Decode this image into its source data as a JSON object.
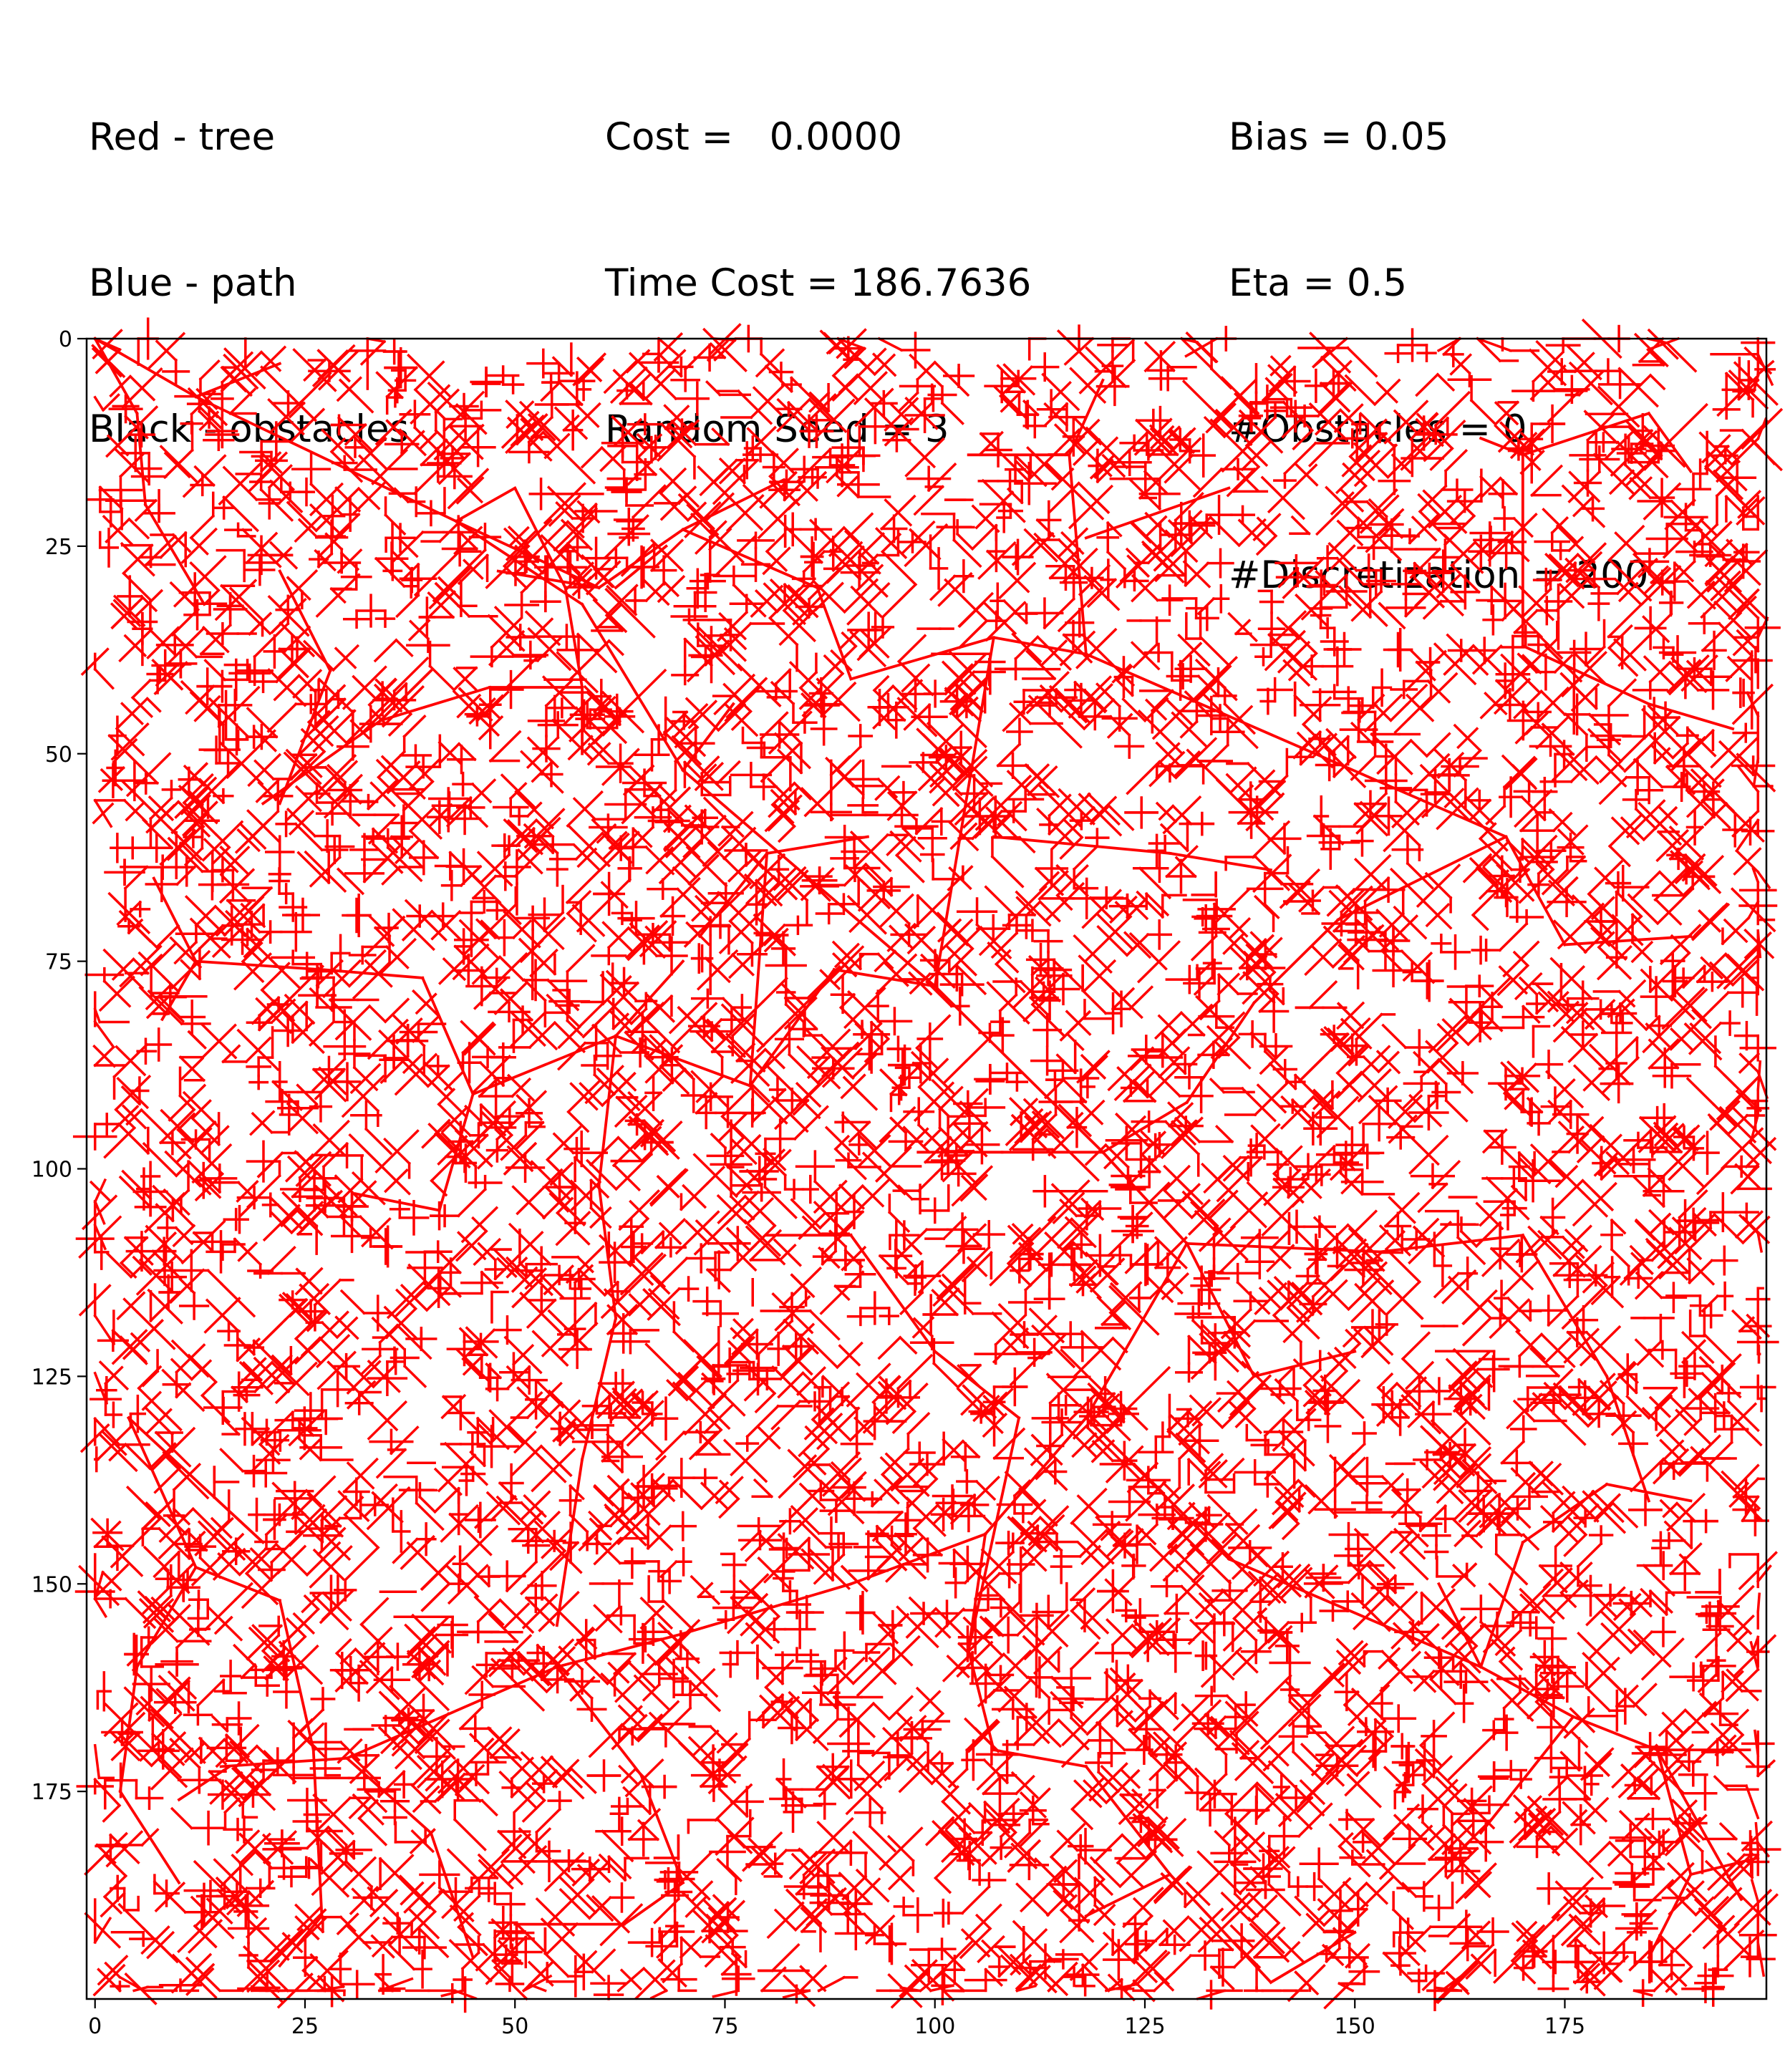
{
  "header": {
    "legend_lines": [
      "Red - tree",
      "Blue - path",
      "Black - obstacles"
    ],
    "stats_lines": [
      "Cost =   0.0000",
      "Time Cost = 186.7636",
      "Random Seed = 3"
    ],
    "params_lines": [
      "Bias = 0.05",
      "Eta = 0.5",
      "#Obstacles = 0",
      "#Discretization = 200"
    ]
  },
  "chart_data": {
    "type": "tree",
    "title": "",
    "xlabel": "",
    "ylabel": "",
    "xlim": [
      -1,
      199
    ],
    "ylim": [
      200,
      0
    ],
    "x_ticks": [
      0,
      25,
      50,
      75,
      100,
      125,
      150,
      175
    ],
    "y_ticks": [
      0,
      25,
      50,
      75,
      100,
      125,
      150,
      175
    ],
    "grid": false,
    "tree_color": "#ff0000",
    "path_color": "#0000ff",
    "obstacle_color": "#000000",
    "root": [
      0,
      0
    ],
    "long_edges": [
      [
        [
          0,
          0
        ],
        [
          12,
          7
        ]
      ],
      [
        [
          12,
          7
        ],
        [
          43,
          22
        ]
      ],
      [
        [
          43,
          22
        ],
        [
          60,
          30
        ]
      ],
      [
        [
          0,
          0
        ],
        [
          5,
          9
        ]
      ],
      [
        [
          5,
          9
        ],
        [
          6,
          20
        ]
      ],
      [
        [
          6,
          20
        ],
        [
          13,
          32
        ]
      ],
      [
        [
          12,
          7
        ],
        [
          22,
          3
        ]
      ],
      [
        [
          43,
          22
        ],
        [
          50,
          18
        ]
      ],
      [
        [
          50,
          18
        ],
        [
          56,
          30
        ]
      ],
      [
        [
          56,
          30
        ],
        [
          58,
          42
        ]
      ],
      [
        [
          58,
          42
        ],
        [
          47,
          42
        ]
      ],
      [
        [
          47,
          42
        ],
        [
          34,
          46
        ]
      ],
      [
        [
          34,
          46
        ],
        [
          20,
          56
        ]
      ],
      [
        [
          43,
          22
        ],
        [
          58,
          32
        ]
      ],
      [
        [
          58,
          32
        ],
        [
          70,
          52
        ]
      ],
      [
        [
          70,
          52
        ],
        [
          100,
          78
        ]
      ],
      [
        [
          100,
          78
        ],
        [
          107,
          36
        ]
      ],
      [
        [
          107,
          36
        ],
        [
          118,
          38
        ]
      ],
      [
        [
          118,
          38
        ],
        [
          168,
          60
        ]
      ],
      [
        [
          168,
          60
        ],
        [
          175,
          73
        ]
      ],
      [
        [
          175,
          73
        ],
        [
          190,
          72
        ]
      ],
      [
        [
          100,
          78
        ],
        [
          120,
          98
        ]
      ],
      [
        [
          120,
          98
        ],
        [
          130,
          109
        ]
      ],
      [
        [
          130,
          109
        ],
        [
          118,
          130
        ]
      ],
      [
        [
          118,
          130
        ],
        [
          106,
          144
        ]
      ],
      [
        [
          106,
          144
        ],
        [
          104,
          158
        ]
      ],
      [
        [
          104,
          158
        ],
        [
          107,
          170
        ]
      ],
      [
        [
          107,
          170
        ],
        [
          118,
          172
        ]
      ],
      [
        [
          106,
          144
        ],
        [
          90,
          150
        ]
      ],
      [
        [
          90,
          150
        ],
        [
          70,
          156
        ]
      ],
      [
        [
          70,
          156
        ],
        [
          55,
          160
        ]
      ],
      [
        [
          55,
          160
        ],
        [
          30,
          171
        ]
      ],
      [
        [
          30,
          171
        ],
        [
          15,
          172
        ]
      ],
      [
        [
          55,
          160
        ],
        [
          65,
          173
        ]
      ],
      [
        [
          65,
          173
        ],
        [
          70,
          186
        ]
      ],
      [
        [
          70,
          186
        ],
        [
          63,
          191
        ]
      ],
      [
        [
          63,
          191
        ],
        [
          50,
          191
        ]
      ],
      [
        [
          130,
          109
        ],
        [
          153,
          110
        ]
      ],
      [
        [
          153,
          110
        ],
        [
          170,
          108
        ]
      ],
      [
        [
          118,
          130
        ],
        [
          135,
          147
        ]
      ],
      [
        [
          135,
          147
        ],
        [
          165,
          160
        ]
      ],
      [
        [
          165,
          160
        ],
        [
          176,
          166
        ]
      ],
      [
        [
          176,
          166
        ],
        [
          186,
          170
        ]
      ],
      [
        [
          186,
          170
        ],
        [
          190,
          185
        ]
      ],
      [
        [
          190,
          185
        ],
        [
          198,
          183
        ]
      ],
      [
        [
          100,
          78
        ],
        [
          88,
          76
        ]
      ],
      [
        [
          88,
          76
        ],
        [
          78,
          90
        ]
      ],
      [
        [
          78,
          90
        ],
        [
          62,
          84
        ]
      ],
      [
        [
          62,
          84
        ],
        [
          45,
          91
        ]
      ],
      [
        [
          45,
          91
        ],
        [
          41,
          105
        ]
      ],
      [
        [
          41,
          105
        ],
        [
          31,
          103
        ]
      ],
      [
        [
          45,
          91
        ],
        [
          39,
          77
        ]
      ],
      [
        [
          39,
          77
        ],
        [
          27,
          76
        ]
      ],
      [
        [
          27,
          76
        ],
        [
          12,
          75
        ]
      ],
      [
        [
          12,
          75
        ],
        [
          7,
          65
        ]
      ],
      [
        [
          78,
          90
        ],
        [
          80,
          62
        ]
      ],
      [
        [
          80,
          62
        ],
        [
          72,
          72
        ]
      ],
      [
        [
          62,
          84
        ],
        [
          60,
          102
        ]
      ],
      [
        [
          60,
          102
        ],
        [
          62,
          118
        ]
      ],
      [
        [
          62,
          118
        ],
        [
          58,
          135
        ]
      ],
      [
        [
          58,
          135
        ],
        [
          55,
          155
        ]
      ],
      [
        [
          22,
          152
        ],
        [
          12,
          148
        ]
      ],
      [
        [
          22,
          152
        ],
        [
          26,
          170
        ]
      ],
      [
        [
          26,
          170
        ],
        [
          27,
          190
        ]
      ],
      [
        [
          27,
          190
        ],
        [
          22,
          196
        ]
      ],
      [
        [
          168,
          60
        ],
        [
          148,
          70
        ]
      ],
      [
        [
          148,
          70
        ],
        [
          138,
          80
        ]
      ],
      [
        [
          138,
          80
        ],
        [
          130,
          92
        ]
      ],
      [
        [
          130,
          92
        ],
        [
          120,
          98
        ]
      ],
      [
        [
          116,
          14
        ],
        [
          118,
          38
        ]
      ],
      [
        [
          116,
          14
        ],
        [
          120,
          5
        ]
      ],
      [
        [
          116,
          14
        ],
        [
          104,
          14
        ]
      ],
      [
        [
          118,
          24
        ],
        [
          135,
          18
        ]
      ],
      [
        [
          107,
          36
        ],
        [
          90,
          41
        ]
      ],
      [
        [
          90,
          41
        ],
        [
          86,
          30
        ]
      ],
      [
        [
          86,
          30
        ],
        [
          70,
          23
        ]
      ],
      [
        [
          70,
          23
        ],
        [
          82,
          17
        ]
      ],
      [
        [
          62,
          30
        ],
        [
          68,
          25
        ]
      ],
      [
        [
          60,
          30
        ],
        [
          70,
          23
        ]
      ],
      [
        [
          170,
          37
        ],
        [
          185,
          44
        ]
      ],
      [
        [
          185,
          44
        ],
        [
          195,
          47
        ]
      ],
      [
        [
          170,
          37
        ],
        [
          170,
          14
        ]
      ],
      [
        [
          170,
          14
        ],
        [
          185,
          9
        ]
      ],
      [
        [
          170,
          14
        ],
        [
          165,
          12
        ]
      ],
      [
        [
          185,
          9
        ],
        [
          190,
          16
        ]
      ],
      [
        [
          104,
          158
        ],
        [
          110,
          130
        ]
      ],
      [
        [
          110,
          130
        ],
        [
          100,
          122
        ]
      ],
      [
        [
          100,
          122
        ],
        [
          90,
          108
        ]
      ],
      [
        [
          12,
          148
        ],
        [
          4,
          130
        ]
      ],
      [
        [
          4,
          130
        ],
        [
          20,
          145
        ]
      ],
      [
        [
          16,
          172
        ],
        [
          10,
          176
        ]
      ],
      [
        [
          30,
          171
        ],
        [
          40,
          180
        ]
      ],
      [
        [
          40,
          180
        ],
        [
          45,
          195
        ]
      ],
      [
        [
          118,
          172
        ],
        [
          128,
          185
        ]
      ],
      [
        [
          128,
          185
        ],
        [
          140,
          198
        ]
      ],
      [
        [
          186,
          170
        ],
        [
          197,
          170
        ]
      ],
      [
        [
          190,
          185
        ],
        [
          185,
          195
        ]
      ],
      [
        [
          176,
          166
        ],
        [
          165,
          180
        ]
      ],
      [
        [
          165,
          160
        ],
        [
          170,
          145
        ]
      ],
      [
        [
          170,
          145
        ],
        [
          180,
          138
        ]
      ],
      [
        [
          180,
          138
        ],
        [
          190,
          140
        ]
      ],
      [
        [
          165,
          160
        ],
        [
          160,
          150
        ]
      ],
      [
        [
          150,
          110
        ],
        [
          158,
          118
        ]
      ],
      [
        [
          170,
          108
        ],
        [
          180,
          125
        ]
      ],
      [
        [
          180,
          125
        ],
        [
          185,
          140
        ]
      ],
      [
        [
          40,
          40
        ],
        [
          34,
          46
        ]
      ],
      [
        [
          22,
          28
        ],
        [
          28,
          40
        ]
      ],
      [
        [
          28,
          40
        ],
        [
          22,
          56
        ]
      ],
      [
        [
          12,
          75
        ],
        [
          8,
          82
        ]
      ],
      [
        [
          12,
          148
        ],
        [
          5,
          160
        ]
      ],
      [
        [
          5,
          160
        ],
        [
          3,
          175
        ]
      ],
      [
        [
          3,
          175
        ],
        [
          10,
          186
        ]
      ],
      [
        [
          186,
          170
        ],
        [
          196,
          188
        ]
      ],
      [
        [
          128,
          185
        ],
        [
          118,
          190
        ]
      ],
      [
        [
          140,
          198
        ],
        [
          150,
          192
        ]
      ],
      [
        [
          120,
          98
        ],
        [
          108,
          98
        ]
      ],
      [
        [
          108,
          98
        ],
        [
          98,
          98
        ]
      ],
      [
        [
          90,
          108
        ],
        [
          80,
          108
        ]
      ],
      [
        [
          130,
          109
        ],
        [
          138,
          125
        ]
      ],
      [
        [
          138,
          125
        ],
        [
          150,
          122
        ]
      ],
      [
        [
          62,
          84
        ],
        [
          70,
          75
        ]
      ],
      [
        [
          80,
          62
        ],
        [
          92,
          60
        ]
      ],
      [
        [
          107,
          60
        ],
        [
          128,
          62
        ]
      ],
      [
        [
          128,
          62
        ],
        [
          140,
          64
        ]
      ],
      [
        [
          60,
          30
        ],
        [
          48,
          28
        ]
      ],
      [
        [
          58,
          42
        ],
        [
          58,
          50
        ]
      ],
      [
        [
          70,
          52
        ],
        [
          76,
          44
        ]
      ]
    ]
  }
}
